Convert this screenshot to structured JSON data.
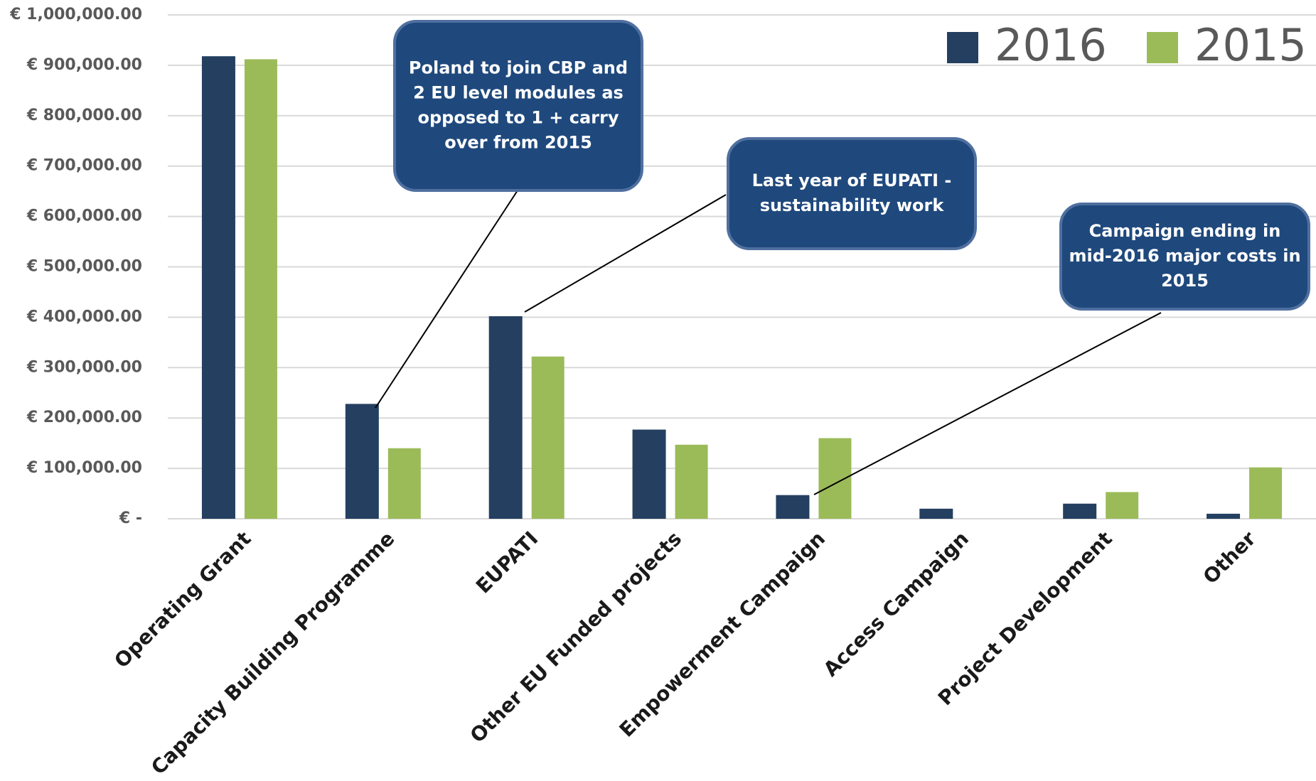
{
  "chart_data": {
    "type": "bar",
    "categories": [
      "Operating Grant",
      "Capacity Building Programme",
      "EUPATI",
      "Other EU Funded projects",
      "Empowerment Campaign",
      "Access Campaign",
      "Project Development",
      "Other"
    ],
    "series": [
      {
        "name": "2016",
        "color": "#243f60",
        "values": [
          918000,
          228000,
          402000,
          177000,
          47000,
          20000,
          30000,
          10000
        ]
      },
      {
        "name": "2015",
        "color": "#9bbb59",
        "values": [
          912000,
          140000,
          322000,
          147000,
          160000,
          0,
          53000,
          102000
        ]
      }
    ],
    "ylim": [
      0,
      1000000
    ],
    "yticks": [
      {
        "value": 0,
        "label": "€ -"
      },
      {
        "value": 100000,
        "label": "€ 100,000.00"
      },
      {
        "value": 200000,
        "label": "€ 200,000.00"
      },
      {
        "value": 300000,
        "label": "€ 300,000.00"
      },
      {
        "value": 400000,
        "label": "€ 400,000.00"
      },
      {
        "value": 500000,
        "label": "€ 500,000.00"
      },
      {
        "value": 600000,
        "label": "€ 600,000.00"
      },
      {
        "value": 700000,
        "label": "€ 700,000.00"
      },
      {
        "value": 800000,
        "label": "€ 800,000.00"
      },
      {
        "value": 900000,
        "label": "€ 900,000.00"
      },
      {
        "value": 1000000,
        "label": "€ 1,000,000.00"
      }
    ],
    "grid": true,
    "legend": "top-right",
    "annotations": [
      {
        "lines": [
          "Poland to join CBP and",
          "2 EU level modules as",
          "opposed to 1 + carry",
          "over from 2015"
        ]
      },
      {
        "lines": [
          "Last year of EUPATI -",
          "sustainability work"
        ]
      },
      {
        "lines": [
          "Campaign ending in",
          "mid-2016 major costs in",
          "2015"
        ]
      }
    ]
  }
}
